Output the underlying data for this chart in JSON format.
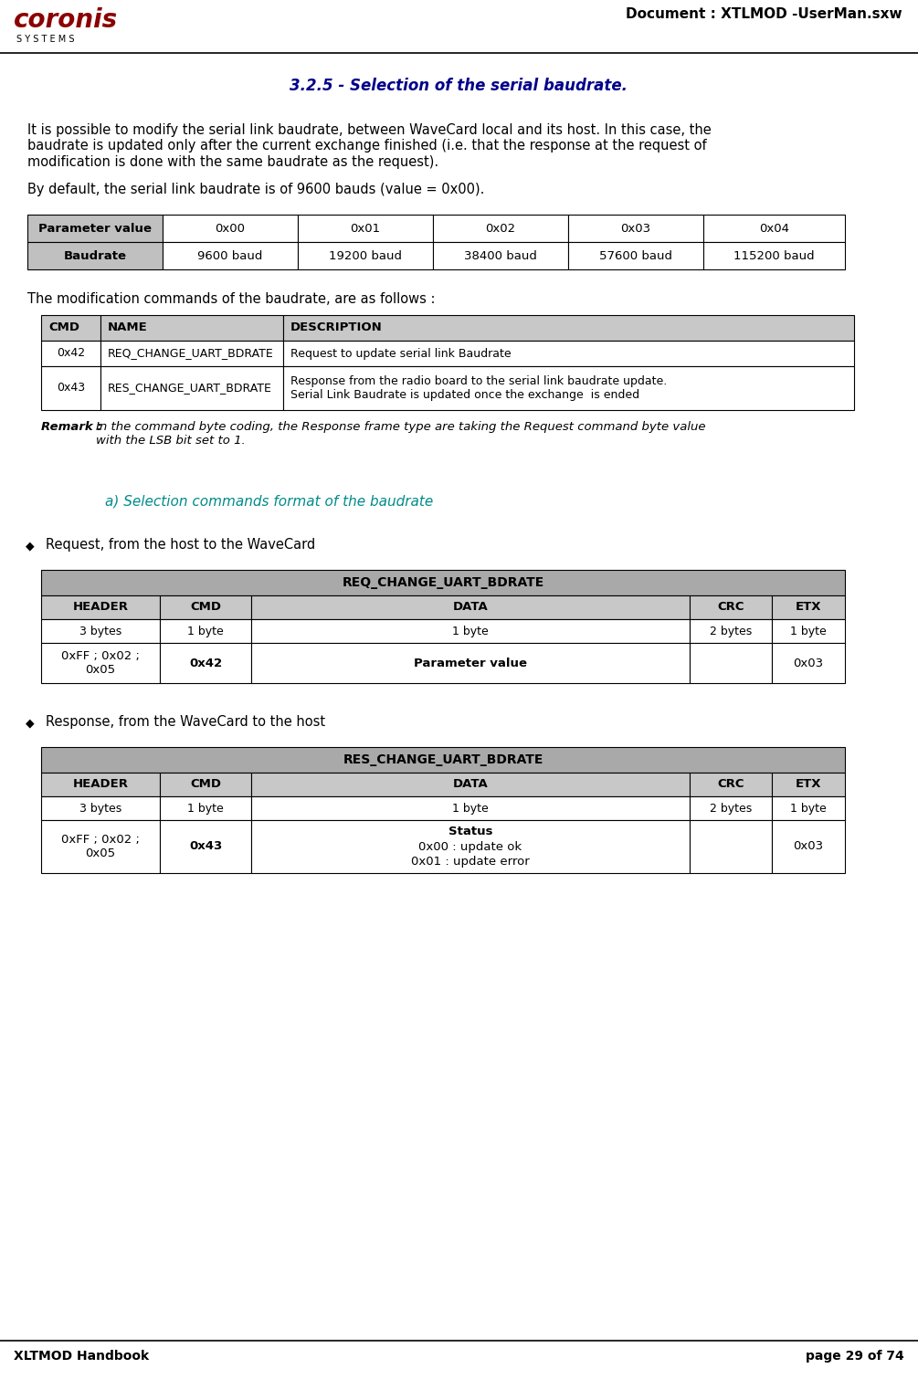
{
  "page_title": "Document : XTLMOD -UserMan.sxw",
  "section_title": "3.2.5 - Selection of the serial baudrate.",
  "para1": "It is possible to modify the serial link baudrate, between WaveCard local and its host. In this case, the\nbaudrate is updated only after the current exchange finished (i.e. that the response at the request of\nmodification is done with the same baudrate as the request).",
  "para2": "By default, the serial link baudrate is of 9600 bauds (value = 0x00).",
  "baud_table_headers": [
    "Parameter value",
    "0x00",
    "0x01",
    "0x02",
    "0x03",
    "0x04"
  ],
  "baud_table_row": [
    "Baudrate",
    "9600 baud",
    "19200 baud",
    "38400 baud",
    "57600 baud",
    "115200 baud"
  ],
  "para3": "The modification commands of the baudrate, are as follows :",
  "cmd_table_headers": [
    "CMD",
    "NAME",
    "DESCRIPTION"
  ],
  "cmd_table_rows": [
    [
      "0x42",
      "REQ_CHANGE_UART_BDRATE",
      "Request to update serial link Baudrate"
    ],
    [
      "0x43",
      "RES_CHANGE_UART_BDRATE",
      "Response from the radio board to the serial link baudrate update.\nSerial Link Baudrate is updated once the exchange  is ended"
    ]
  ],
  "remark_bold": "Remark : ",
  "remark_italic": "In the command byte coding, the Response frame type are taking the Request command byte value\nwith the LSB bit set to 1.",
  "subsection_title": "a) Selection commands format of the baudrate",
  "bullet1": "Request, from the host to the WaveCard",
  "req_table_title": "REQ_CHANGE_UART_BDRATE",
  "req_table_headers": [
    "HEADER",
    "CMD",
    "DATA",
    "CRC",
    "ETX"
  ],
  "req_table_row1": [
    "3 bytes",
    "1 byte",
    "1 byte",
    "2 bytes",
    "1 byte"
  ],
  "req_table_row2": [
    "0xFF ; 0x02 ;\n0x05",
    "0x42",
    "Parameter value",
    "",
    "0x03"
  ],
  "bullet2": "Response, from the WaveCard to the host",
  "res_table_title": "RES_CHANGE_UART_BDRATE",
  "res_table_headers": [
    "HEADER",
    "CMD",
    "DATA",
    "CRC",
    "ETX"
  ],
  "res_table_row1": [
    "3 bytes",
    "1 byte",
    "1 byte",
    "2 bytes",
    "1 byte"
  ],
  "res_table_row2": [
    "0xFF ; 0x02 ;\n0x05",
    "0x43",
    "Status\n0x00 : update ok\n0x01 : update error",
    "",
    "0x03"
  ],
  "footer_left": "XLTMOD Handbook",
  "footer_right": "page 29 of 74",
  "background": "#FFFFFF"
}
